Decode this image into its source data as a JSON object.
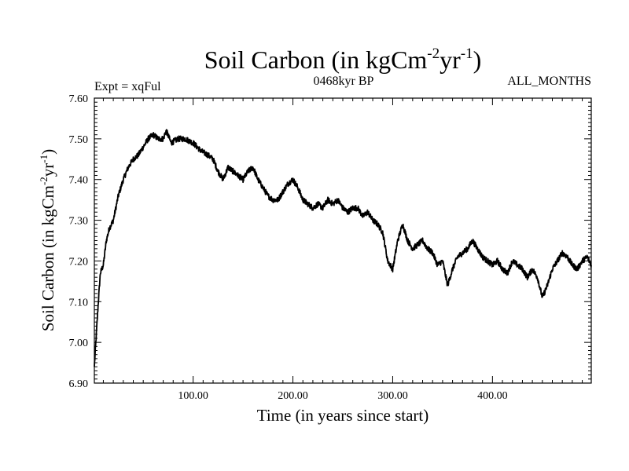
{
  "chart_data": {
    "type": "line",
    "title": "Soil Carbon (in kgCm",
    "title_sup1": "-2",
    "title_mid": "yr",
    "title_sup2": "-1",
    "title_end": ")",
    "subtitle_left": "Expt = xqFul",
    "subtitle_center": "0468kyr BP",
    "subtitle_right": "ALL_MONTHS",
    "xlabel": "Time (in years since start)",
    "ylabel": "Soil Carbon (in kgCm",
    "ylabel_sup1": "-2",
    "ylabel_mid": "yr",
    "ylabel_sup2": "-1",
    "ylabel_end": ")",
    "xlim": [
      1,
      499
    ],
    "ylim": [
      6.9,
      7.6
    ],
    "xticks": [
      100,
      200,
      300,
      400
    ],
    "xtick_labels": [
      "100.00",
      "200.00",
      "300.00",
      "400.00"
    ],
    "yticks": [
      6.9,
      7.0,
      7.1,
      7.2,
      7.3,
      7.4,
      7.5,
      7.6
    ],
    "ytick_labels": [
      "6.90",
      "7.00",
      "7.10",
      "7.20",
      "7.30",
      "7.40",
      "7.50",
      "7.60"
    ],
    "grid": false,
    "series": [
      {
        "name": "Soil Carbon",
        "color": "#000000",
        "x": [
          1,
          3,
          5,
          7,
          10,
          13,
          16,
          20,
          25,
          30,
          35,
          40,
          45,
          50,
          55,
          60,
          65,
          70,
          73,
          78,
          85,
          92,
          100,
          108,
          115,
          120,
          125,
          130,
          135,
          140,
          145,
          150,
          155,
          160,
          165,
          170,
          175,
          180,
          185,
          190,
          195,
          200,
          205,
          210,
          215,
          220,
          225,
          230,
          235,
          240,
          245,
          250,
          255,
          260,
          265,
          270,
          275,
          280,
          285,
          290,
          295,
          300,
          305,
          310,
          315,
          320,
          325,
          330,
          335,
          340,
          345,
          350,
          355,
          360,
          365,
          370,
          375,
          380,
          385,
          390,
          395,
          400,
          405,
          410,
          415,
          420,
          425,
          430,
          435,
          440,
          445,
          450,
          455,
          460,
          465,
          470,
          475,
          480,
          485,
          490,
          495,
          499
        ],
        "values": [
          6.94,
          7.02,
          7.1,
          7.17,
          7.19,
          7.25,
          7.28,
          7.3,
          7.36,
          7.4,
          7.43,
          7.45,
          7.46,
          7.48,
          7.5,
          7.51,
          7.5,
          7.5,
          7.52,
          7.49,
          7.5,
          7.5,
          7.49,
          7.47,
          7.46,
          7.45,
          7.42,
          7.4,
          7.43,
          7.42,
          7.41,
          7.4,
          7.42,
          7.43,
          7.4,
          7.38,
          7.36,
          7.35,
          7.35,
          7.37,
          7.39,
          7.4,
          7.38,
          7.35,
          7.34,
          7.33,
          7.34,
          7.33,
          7.35,
          7.34,
          7.35,
          7.33,
          7.32,
          7.33,
          7.33,
          7.31,
          7.32,
          7.3,
          7.29,
          7.27,
          7.2,
          7.18,
          7.25,
          7.29,
          7.25,
          7.23,
          7.24,
          7.25,
          7.23,
          7.22,
          7.19,
          7.2,
          7.14,
          7.18,
          7.21,
          7.22,
          7.23,
          7.25,
          7.23,
          7.21,
          7.2,
          7.19,
          7.2,
          7.18,
          7.17,
          7.2,
          7.19,
          7.18,
          7.16,
          7.18,
          7.16,
          7.11,
          7.14,
          7.18,
          7.2,
          7.22,
          7.21,
          7.19,
          7.18,
          7.2,
          7.21,
          7.19
        ]
      }
    ]
  }
}
